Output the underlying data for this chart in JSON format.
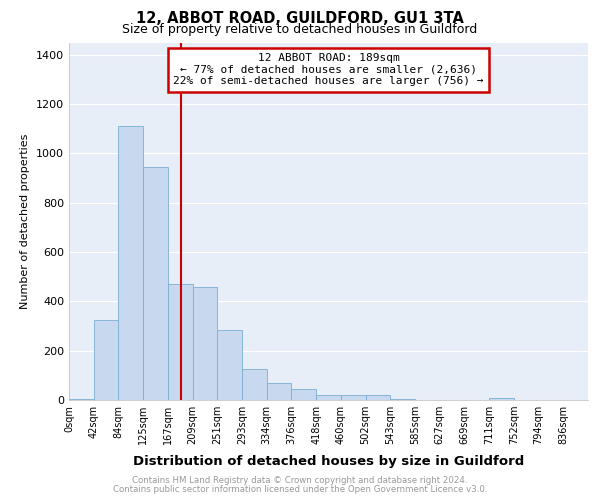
{
  "title": "12, ABBOT ROAD, GUILDFORD, GU1 3TA",
  "subtitle": "Size of property relative to detached houses in Guildford",
  "xlabel": "Distribution of detached houses by size in Guildford",
  "ylabel": "Number of detached properties",
  "bar_color": "#c8d8ee",
  "bar_edge_color": "#7aafd4",
  "background_color": "#e8eef8",
  "grid_color": "#ffffff",
  "annotation_box_color": "#cc0000",
  "annotation_line1": "12 ABBOT ROAD: 189sqm",
  "annotation_line2": "← 77% of detached houses are smaller (2,636)",
  "annotation_line3": "22% of semi-detached houses are larger (756) →",
  "vline_x": 4,
  "vline_color": "#cc0000",
  "ylim": [
    0,
    1450
  ],
  "yticks": [
    0,
    200,
    400,
    600,
    800,
    1000,
    1200,
    1400
  ],
  "categories": [
    "0sqm",
    "42sqm",
    "84sqm",
    "125sqm",
    "167sqm",
    "209sqm",
    "251sqm",
    "293sqm",
    "334sqm",
    "376sqm",
    "418sqm",
    "460sqm",
    "502sqm",
    "543sqm",
    "585sqm",
    "627sqm",
    "669sqm",
    "711sqm",
    "752sqm",
    "794sqm",
    "836sqm"
  ],
  "values": [
    5,
    325,
    1110,
    945,
    470,
    460,
    282,
    125,
    70,
    45,
    22,
    22,
    22,
    3,
    2,
    1,
    0,
    8,
    0,
    0,
    0
  ],
  "footer_line1": "Contains HM Land Registry data © Crown copyright and database right 2024.",
  "footer_line2": "Contains public sector information licensed under the Open Government Licence v3.0.",
  "footer_color": "#999999"
}
